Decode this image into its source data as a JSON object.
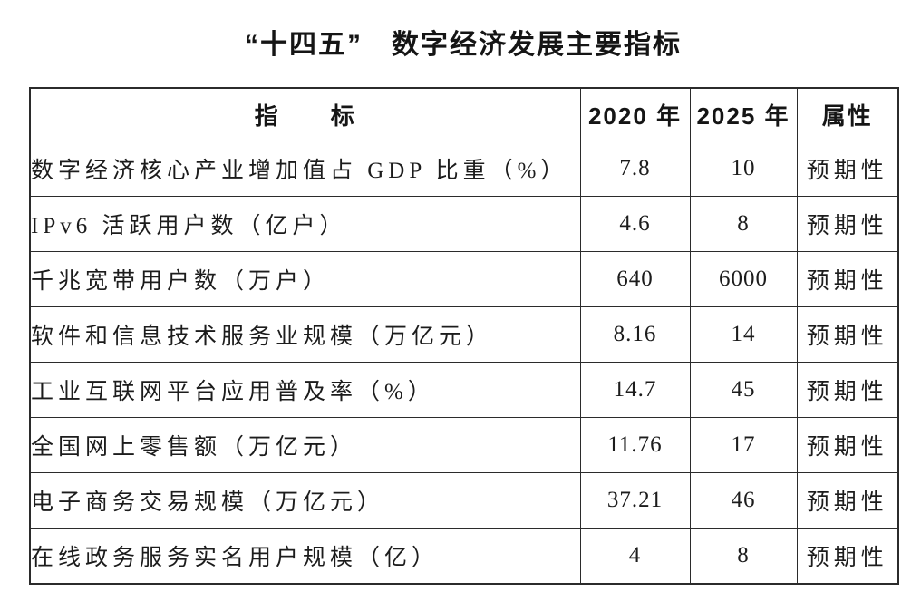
{
  "page_title": "“十四五”　数字经济发展主要指标",
  "table": {
    "headers": [
      "指　　标",
      "2020 年",
      "2025 年",
      "属性"
    ],
    "rows": [
      {
        "indicator": "数字经济核心产业增加值占 GDP 比重（%）",
        "y2020": "7.8",
        "y2025": "10",
        "attribute": "预期性"
      },
      {
        "indicator": "IPv6 活跃用户数（亿户）",
        "y2020": "4.6",
        "y2025": "8",
        "attribute": "预期性"
      },
      {
        "indicator": "千兆宽带用户数（万户）",
        "y2020": "640",
        "y2025": "6000",
        "attribute": "预期性"
      },
      {
        "indicator": "软件和信息技术服务业规模（万亿元）",
        "y2020": "8.16",
        "y2025": "14",
        "attribute": "预期性"
      },
      {
        "indicator": "工业互联网平台应用普及率（%）",
        "y2020": "14.7",
        "y2025": "45",
        "attribute": "预期性"
      },
      {
        "indicator": "全国网上零售额（万亿元）",
        "y2020": "11.76",
        "y2025": "17",
        "attribute": "预期性"
      },
      {
        "indicator": "电子商务交易规模（万亿元）",
        "y2020": "37.21",
        "y2025": "46",
        "attribute": "预期性"
      },
      {
        "indicator": "在线政务服务实名用户规模（亿）",
        "y2020": "4",
        "y2025": "8",
        "attribute": "预期性"
      }
    ]
  },
  "colors": {
    "background": "#ffffff",
    "text": "#1c1c1c",
    "border": "#2b2b2b"
  }
}
